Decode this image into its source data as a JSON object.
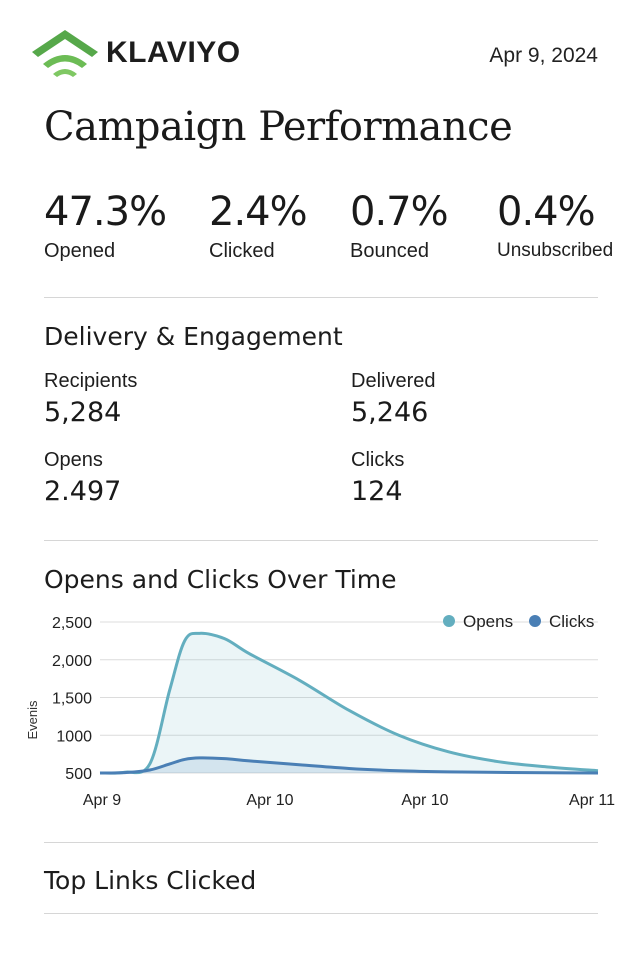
{
  "header": {
    "brand": "KLAVIYO",
    "date": "Apr 9, 2024",
    "title": "Campaign Performance"
  },
  "summary": [
    {
      "value": "47.3%",
      "label": "Opened"
    },
    {
      "value": "2.4%",
      "label": "Clicked"
    },
    {
      "value": "0.7%",
      "label": "Bounced"
    },
    {
      "value": "0.4%",
      "label": "Unsubscribed"
    }
  ],
  "delivery": {
    "title": "Delivery & Engagement",
    "metrics": [
      {
        "label": "Recipients",
        "value": "5,284"
      },
      {
        "label": "Delivered",
        "value": "5,246"
      },
      {
        "label": "Opens",
        "value": "2.497"
      },
      {
        "label": "Clicks",
        "value": "124"
      }
    ]
  },
  "chart_section": {
    "title": "Opens and Clicks Over Time"
  },
  "chart_data": {
    "type": "area",
    "title": "Opens and Clicks Over Time",
    "xlabel": "",
    "ylabel": "Evenis",
    "x_tick_labels": [
      "Apr 9",
      "Apr 10",
      "Apr 10",
      "Apr 11"
    ],
    "y_tick_labels": [
      "2,500",
      "2,000",
      "1,500",
      "1000",
      "500"
    ],
    "y_ticks": [
      2500,
      2000,
      1500,
      1000,
      500
    ],
    "ylim": [
      500,
      2500
    ],
    "x": [
      0,
      0.05,
      0.1,
      0.14,
      0.17,
      0.2,
      0.25,
      0.3,
      0.4,
      0.5,
      0.6,
      0.7,
      0.8,
      0.9,
      1.0
    ],
    "series": [
      {
        "name": "Opens",
        "color": "#63aebf",
        "values": [
          500,
          510,
          620,
          1600,
          2250,
          2350,
          2280,
          2080,
          1730,
          1330,
          1000,
          780,
          650,
          580,
          530
        ]
      },
      {
        "name": "Clicks",
        "color": "#4a7fb5",
        "values": [
          500,
          505,
          540,
          620,
          680,
          700,
          690,
          660,
          610,
          560,
          530,
          515,
          508,
          503,
          500
        ]
      }
    ],
    "legend": "top-right",
    "grid": true
  },
  "top_links": {
    "title": "Top Links Clicked"
  }
}
